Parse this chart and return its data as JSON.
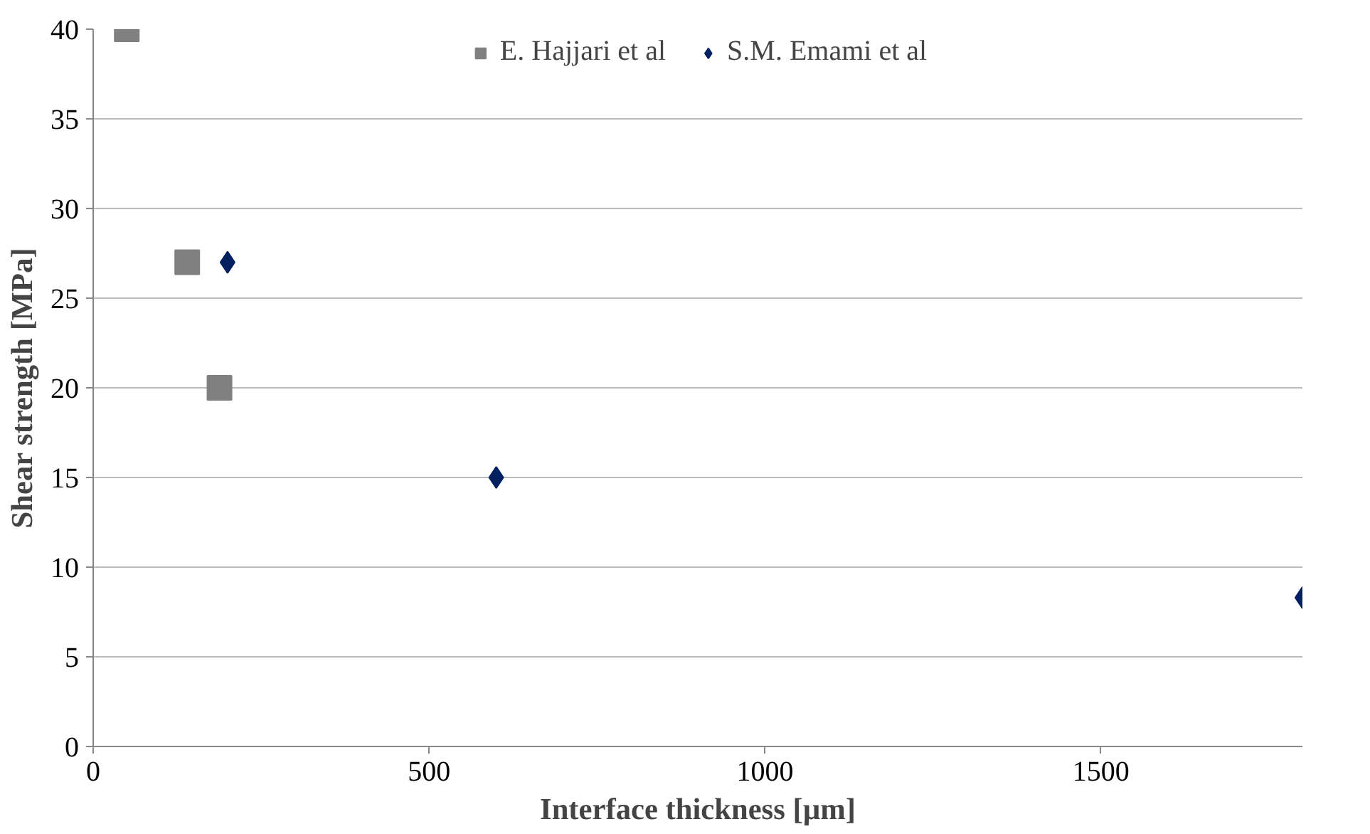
{
  "chart_data": {
    "type": "scatter",
    "xlabel": "Interface thickness [µm]",
    "ylabel": "Shear strength [MPa]",
    "xlim": [
      0,
      1800
    ],
    "ylim": [
      0,
      40
    ],
    "xticks": [
      0,
      500,
      1000,
      1500
    ],
    "yticks": [
      0,
      5,
      10,
      15,
      20,
      25,
      30,
      35,
      40
    ],
    "grid": "y",
    "legend": "top",
    "series": [
      {
        "name": "E. Hajjari et al",
        "color": "#808080",
        "marker": "square",
        "x": [
          50,
          140,
          188
        ],
        "values": [
          40,
          27,
          20
        ]
      },
      {
        "name": "S.M. Emami et al",
        "color": "#002060",
        "marker": "diamond",
        "x": [
          200,
          600,
          1800
        ],
        "values": [
          27,
          15,
          8.3
        ]
      }
    ]
  }
}
